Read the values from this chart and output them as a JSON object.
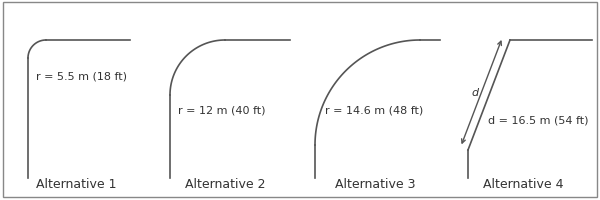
{
  "background_color": "#ffffff",
  "border_color": "#888888",
  "curve_color": "#555555",
  "curve_linewidth": 1.2,
  "label_color": "#333333",
  "label_fontsize": 9,
  "alternatives": [
    "Alternative 1",
    "Alternative 2",
    "Alternative 3",
    "Alternative 4"
  ],
  "radius_labels": [
    "r = 5.5 m (18 ft)",
    "r = 12 m (40 ft)",
    "r = 14.6 m (48 ft)",
    "d = 16.5 m (54 ft)"
  ],
  "figsize": [
    6.0,
    2.01
  ],
  "dpi": 100
}
